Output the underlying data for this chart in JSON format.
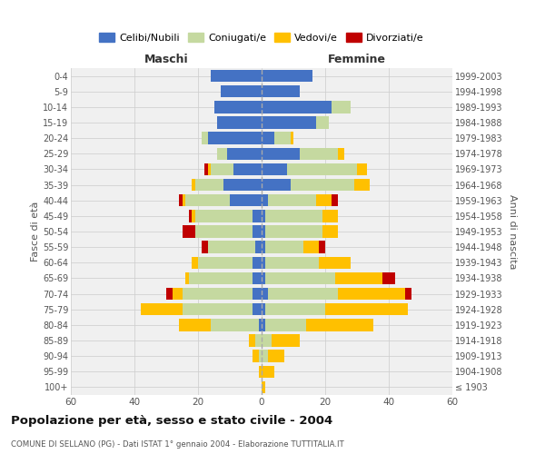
{
  "age_groups": [
    "100+",
    "95-99",
    "90-94",
    "85-89",
    "80-84",
    "75-79",
    "70-74",
    "65-69",
    "60-64",
    "55-59",
    "50-54",
    "45-49",
    "40-44",
    "35-39",
    "30-34",
    "25-29",
    "20-24",
    "15-19",
    "10-14",
    "5-9",
    "0-4"
  ],
  "birth_years": [
    "≤ 1903",
    "1904-1908",
    "1909-1913",
    "1914-1918",
    "1919-1923",
    "1924-1928",
    "1929-1933",
    "1934-1938",
    "1939-1943",
    "1944-1948",
    "1949-1953",
    "1954-1958",
    "1959-1963",
    "1964-1968",
    "1969-1973",
    "1974-1978",
    "1979-1983",
    "1984-1988",
    "1989-1993",
    "1994-1998",
    "1999-2003"
  ],
  "male": {
    "celibi": [
      0,
      0,
      0,
      0,
      1,
      3,
      3,
      3,
      3,
      2,
      3,
      3,
      10,
      12,
      9,
      11,
      17,
      14,
      15,
      13,
      16
    ],
    "coniugati": [
      0,
      0,
      1,
      2,
      15,
      22,
      22,
      20,
      17,
      15,
      18,
      18,
      14,
      9,
      7,
      3,
      2,
      0,
      0,
      0,
      0
    ],
    "vedovi": [
      0,
      1,
      2,
      2,
      10,
      13,
      3,
      1,
      2,
      0,
      0,
      1,
      1,
      1,
      1,
      0,
      0,
      0,
      0,
      0,
      0
    ],
    "divorziati": [
      0,
      0,
      0,
      0,
      0,
      0,
      2,
      0,
      0,
      2,
      4,
      1,
      1,
      0,
      1,
      0,
      0,
      0,
      0,
      0,
      0
    ]
  },
  "female": {
    "nubili": [
      0,
      0,
      0,
      0,
      1,
      1,
      2,
      1,
      1,
      1,
      1,
      1,
      2,
      9,
      8,
      12,
      4,
      17,
      22,
      12,
      16
    ],
    "coniugate": [
      0,
      0,
      2,
      3,
      13,
      19,
      22,
      22,
      17,
      12,
      18,
      18,
      15,
      20,
      22,
      12,
      5,
      4,
      6,
      0,
      0
    ],
    "vedove": [
      1,
      4,
      5,
      9,
      21,
      26,
      21,
      15,
      10,
      5,
      5,
      5,
      5,
      5,
      3,
      2,
      1,
      0,
      0,
      0,
      0
    ],
    "divorziate": [
      0,
      0,
      0,
      0,
      0,
      0,
      2,
      4,
      0,
      2,
      0,
      0,
      2,
      0,
      0,
      0,
      0,
      0,
      0,
      0,
      0
    ]
  },
  "colors": {
    "celibi": "#4472c4",
    "coniugati": "#c5d9a0",
    "vedovi": "#ffc000",
    "divorziati": "#c00000"
  },
  "title": "Popolazione per età, sesso e stato civile - 2004",
  "subtitle": "COMUNE DI SELLANO (PG) - Dati ISTAT 1° gennaio 2004 - Elaborazione TUTTITALIA.IT",
  "xlabel_left": "Maschi",
  "xlabel_right": "Femmine",
  "ylabel_left": "Fasce di età",
  "ylabel_right": "Anni di nascita",
  "xlim": 60,
  "legend_labels": [
    "Celibi/Nubili",
    "Coniugati/e",
    "Vedovi/e",
    "Divorziati/e"
  ],
  "bg_color": "#f0f0f0",
  "grid_color": "#cccccc"
}
